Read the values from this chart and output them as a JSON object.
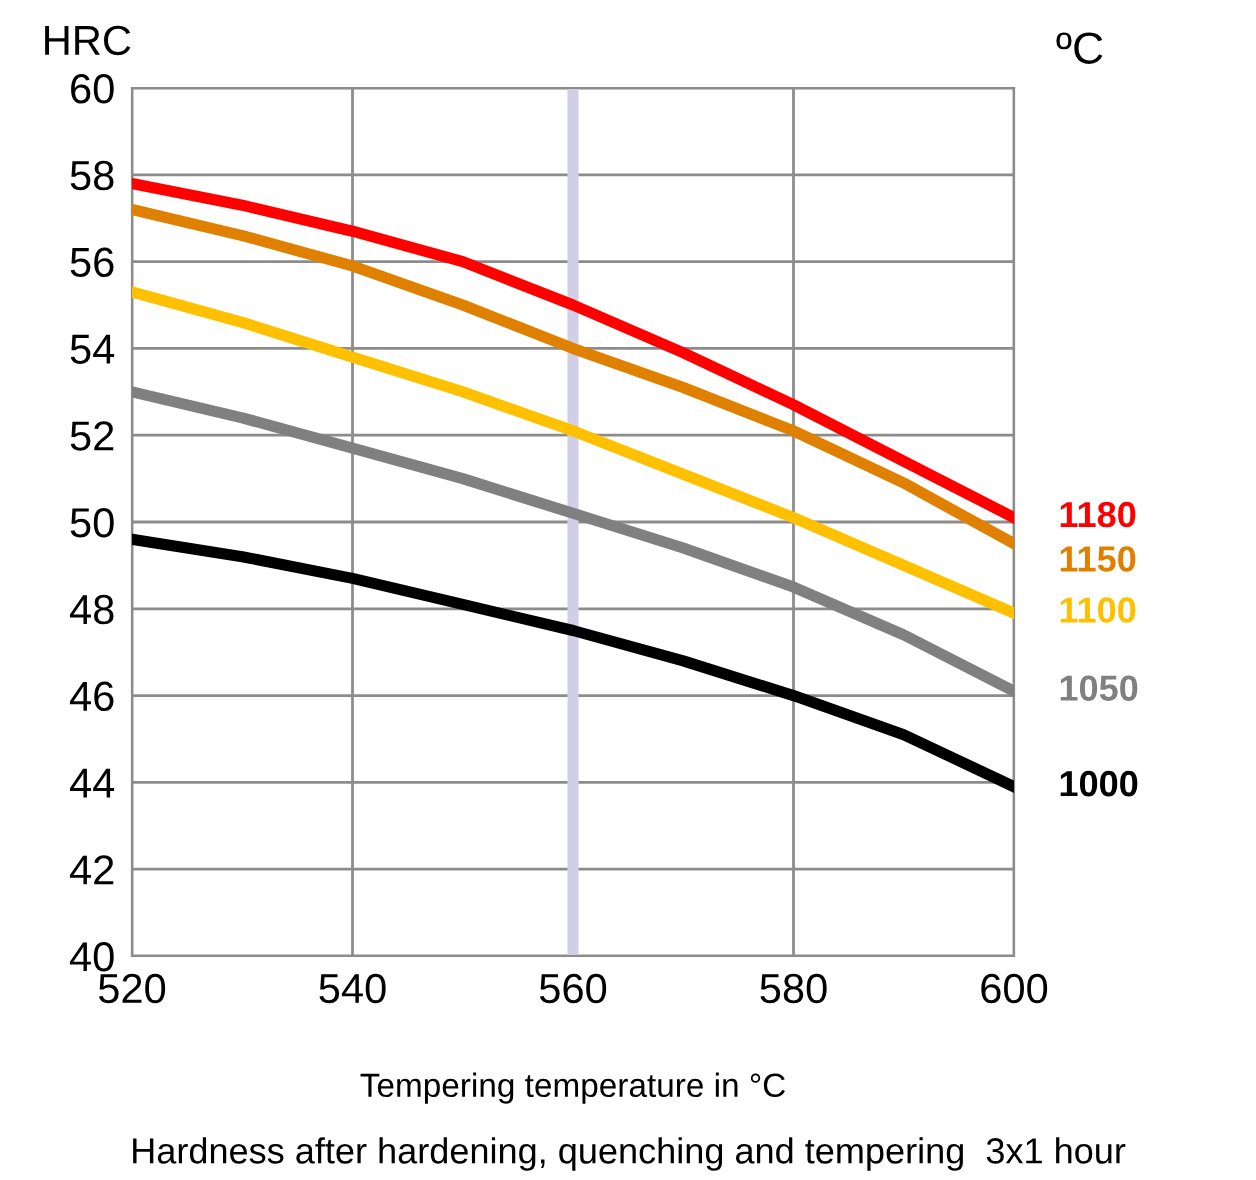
{
  "chart_data": {
    "type": "line",
    "ylabel": "HRC",
    "xlabel": "Tempering temperature in °C",
    "annotations": [
      "ºC",
      "Hardness after hardening, quenching and tempering  3x1 hour"
    ],
    "x": [
      520,
      530,
      540,
      550,
      560,
      570,
      580,
      590,
      600
    ],
    "series": [
      {
        "name": "1180",
        "color": "#ff0000",
        "values": [
          57.8,
          57.3,
          56.7,
          56.0,
          55.0,
          53.9,
          52.7,
          51.4,
          50.1
        ]
      },
      {
        "name": "1150",
        "color": "#e08000",
        "values": [
          57.2,
          56.6,
          55.9,
          55.0,
          54.0,
          53.1,
          52.1,
          50.9,
          49.5
        ]
      },
      {
        "name": "1100",
        "color": "#ffc000",
        "values": [
          55.3,
          54.6,
          53.8,
          53.0,
          52.1,
          51.1,
          50.1,
          49.0,
          47.9
        ]
      },
      {
        "name": "1050",
        "color": "#808080",
        "values": [
          53.0,
          52.4,
          51.7,
          51.0,
          50.2,
          49.4,
          48.5,
          47.4,
          46.1
        ]
      },
      {
        "name": "1000",
        "color": "#000000",
        "values": [
          49.6,
          49.2,
          48.7,
          48.1,
          47.5,
          46.8,
          46.0,
          45.1,
          43.9
        ]
      }
    ],
    "xlim": [
      520,
      600
    ],
    "ylim": [
      40,
      60
    ],
    "xticks": [
      520,
      540,
      560,
      580,
      600
    ],
    "yticks": [
      40,
      42,
      44,
      46,
      48,
      50,
      52,
      54,
      56,
      58,
      60
    ],
    "grid": true,
    "marker": "none",
    "line_style": "solid",
    "legend": false,
    "ref_lines": [
      {
        "axis": "x",
        "value": 560,
        "color": "#d0cfe6"
      }
    ]
  }
}
